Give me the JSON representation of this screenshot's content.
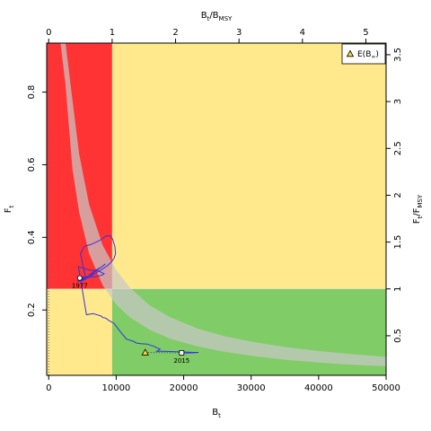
{
  "chart_data": {
    "type": "line",
    "title": "",
    "xlabel": "B",
    "xlabel_sub": "t",
    "ylabel": "F",
    "ylabel_sub": "t",
    "x2label_parts": [
      "B",
      "t",
      "/B",
      "MSY"
    ],
    "y2label_parts": [
      "F",
      "t",
      "/F",
      "MSY"
    ],
    "xlim": [
      -300,
      50000
    ],
    "ylim": [
      0.02,
      0.935
    ],
    "x_ticks": [
      0,
      10000,
      20000,
      30000,
      40000,
      50000
    ],
    "x_tick_labels": [
      "0",
      "10000",
      "20000",
      "30000",
      "40000",
      "50000"
    ],
    "y_ticks": [
      0.2,
      0.4,
      0.6,
      0.8
    ],
    "y_tick_labels": [
      "0.2",
      "0.4",
      "0.6",
      "0.8"
    ],
    "top_ticks": [
      0,
      1,
      2,
      3,
      4,
      5
    ],
    "top_tick_labels": [
      "0",
      "1",
      "2",
      "3",
      "4",
      "5"
    ],
    "right_ticks": [
      0.5,
      1,
      1.5,
      2,
      2.5,
      3,
      3.5
    ],
    "right_tick_labels": [
      "0.5",
      "1",
      "1.5",
      "2",
      "2.5",
      "3",
      "3.5"
    ],
    "Bmsy": 9400,
    "Fmsy": 0.258,
    "zone_colors": {
      "red": "#ff3333",
      "yellow": "#ffe98c",
      "green": "#80cc66",
      "envelope": "#c8c8c8",
      "trajectory": "#3333dd"
    },
    "legend": {
      "position": "top-right",
      "label_main": "E(B",
      "label_sub": "∞",
      "label_close": ")"
    },
    "envelope": {
      "x": [
        1750,
        2500,
        3500,
        4500,
        6000,
        8000,
        10000,
        12000,
        15000,
        18000,
        22000,
        26000,
        30000,
        35000,
        40000,
        45000,
        50000
      ],
      "upper": [
        0.935,
        0.935,
        0.78,
        0.63,
        0.49,
        0.378,
        0.31,
        0.262,
        0.212,
        0.18,
        0.149,
        0.128,
        0.113,
        0.098,
        0.087,
        0.078,
        0.071
      ],
      "lower": [
        0.935,
        0.82,
        0.59,
        0.47,
        0.355,
        0.268,
        0.215,
        0.18,
        0.145,
        0.121,
        0.1,
        0.085,
        0.074,
        0.063,
        0.055,
        0.049,
        0.045
      ]
    },
    "series": [
      {
        "x": [
          4600,
          5700,
          6400,
          7000,
          7500,
          8100,
          8400,
          7800,
          7000,
          6800,
          5800,
          5200,
          4800,
          4500,
          4300,
          4400,
          4700,
          5100,
          5500,
          5000,
          4700,
          5300,
          6200,
          6800,
          7600,
          8500,
          9200,
          9500,
          9800,
          9900,
          9700,
          9300,
          8700,
          7900,
          7000,
          6000,
          5000,
          4400,
          4400,
          5000,
          5500,
          4700,
          6000,
          7000,
          7500,
          8000,
          8200,
          7400,
          6000,
          5000,
          4400,
          5600,
          6600,
          7500,
          7800,
          8000,
          8400,
          9000,
          9700,
          10500,
          11500,
          12000,
          12500,
          13000,
          13600,
          14600,
          15200,
          15600,
          16000,
          16500,
          16000,
          17000,
          19000,
          20500,
          21500,
          22200,
          21500,
          20000,
          19700
        ],
        "y": [
          0.288,
          0.292,
          0.298,
          0.308,
          0.314,
          0.322,
          0.327,
          0.318,
          0.31,
          0.307,
          0.293,
          0.287,
          0.283,
          0.281,
          0.28,
          0.279,
          0.28,
          0.282,
          0.285,
          0.33,
          0.355,
          0.375,
          0.38,
          0.385,
          0.392,
          0.404,
          0.404,
          0.394,
          0.375,
          0.355,
          0.343,
          0.332,
          0.322,
          0.312,
          0.302,
          0.29,
          0.283,
          0.287,
          0.29,
          0.288,
          0.289,
          0.29,
          0.29,
          0.292,
          0.294,
          0.297,
          0.3,
          0.307,
          0.31,
          0.316,
          0.32,
          0.187,
          0.19,
          0.185,
          0.183,
          0.179,
          0.178,
          0.17,
          0.163,
          0.143,
          0.12,
          0.117,
          0.114,
          0.109,
          0.107,
          0.106,
          0.102,
          0.1,
          0.096,
          0.092,
          0.086,
          0.086,
          0.085,
          0.084,
          0.083,
          0.083,
          0.082,
          0.081,
          0.082
        ]
      }
    ],
    "points": {
      "start": {
        "x": 4600,
        "y": 0.288,
        "label": "1977"
      },
      "end": {
        "x": 19700,
        "y": 0.082,
        "label": "2015"
      },
      "expected": {
        "x": 14300,
        "y": 0.083
      }
    }
  }
}
